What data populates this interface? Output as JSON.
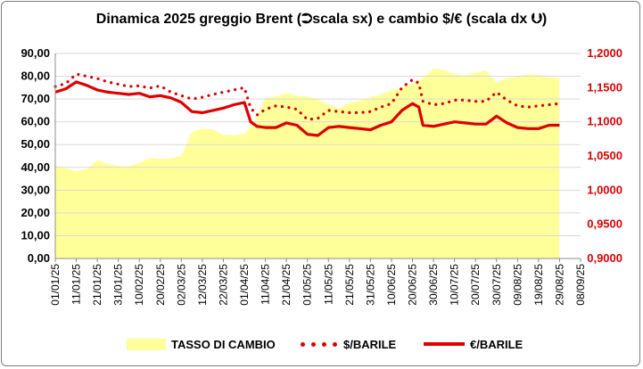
{
  "chart_data": {
    "type": "line",
    "title": "Dinamica 2025 greggio Brent (⮊scala sx) e cambio $/€ (scala dx ⮋)",
    "left_axis": {
      "range": [
        0,
        90
      ],
      "ticks": [
        "0,00",
        "10,00",
        "20,00",
        "30,00",
        "40,00",
        "50,00",
        "60,00",
        "70,00",
        "80,00",
        "90,00"
      ]
    },
    "right_axis": {
      "range": [
        0.9,
        1.2
      ],
      "ticks": [
        "0,9000",
        "0,9500",
        "1,0000",
        "1,0500",
        "1,1000",
        "1,1500",
        "1,2000"
      ]
    },
    "x_ticks": [
      "01/01/25",
      "11/01/25",
      "21/01/25",
      "31/01/25",
      "10/02/25",
      "20/02/25",
      "02/03/25",
      "12/03/25",
      "22/03/25",
      "01/04/25",
      "11/04/25",
      "21/04/25",
      "01/05/25",
      "11/05/25",
      "21/05/25",
      "31/05/25",
      "10/06/25",
      "20/06/25",
      "30/06/25",
      "10/07/25",
      "20/07/25",
      "30/07/25",
      "09/08/25",
      "19/08/25",
      "29/08/25",
      "08/09/25"
    ],
    "grid": true,
    "legend_position": "bottom",
    "series": [
      {
        "name": "TASSO DI CAMBIO",
        "kind": "area",
        "axis": "right",
        "color": "#ffff99",
        "x": [
          "01/01/25",
          "06/01/25",
          "11/01/25",
          "16/01/25",
          "21/01/25",
          "26/01/25",
          "31/01/25",
          "05/02/25",
          "10/02/25",
          "15/02/25",
          "20/02/25",
          "25/02/25",
          "02/03/25",
          "07/03/25",
          "12/03/25",
          "17/03/25",
          "22/03/25",
          "27/03/25",
          "01/04/25",
          "06/04/25",
          "11/04/25",
          "16/04/25",
          "21/04/25",
          "26/04/25",
          "01/05/25",
          "06/05/25",
          "11/05/25",
          "16/05/25",
          "21/05/25",
          "26/05/25",
          "31/05/25",
          "05/06/25",
          "10/06/25",
          "15/06/25",
          "20/06/25",
          "25/06/25",
          "30/06/25",
          "05/07/25",
          "10/07/25",
          "15/07/25",
          "20/07/25",
          "25/07/25",
          "30/07/25",
          "04/08/25",
          "09/08/25",
          "14/08/25",
          "19/08/25",
          "24/08/25",
          "29/08/25"
        ],
        "values": [
          1.036,
          1.032,
          1.028,
          1.031,
          1.044,
          1.038,
          1.036,
          1.035,
          1.04,
          1.047,
          1.046,
          1.047,
          1.05,
          1.085,
          1.09,
          1.089,
          1.081,
          1.08,
          1.082,
          1.1,
          1.135,
          1.137,
          1.142,
          1.138,
          1.137,
          1.133,
          1.125,
          1.12,
          1.128,
          1.131,
          1.136,
          1.14,
          1.146,
          1.15,
          1.156,
          1.164,
          1.178,
          1.176,
          1.17,
          1.168,
          1.172,
          1.175,
          1.158,
          1.164,
          1.166,
          1.17,
          1.169,
          1.165,
          1.164
        ]
      },
      {
        "name": "$/BARILE",
        "kind": "dotted",
        "axis": "left",
        "color": "#e00000",
        "x": [
          "01/01/25",
          "06/01/25",
          "11/01/25",
          "16/01/25",
          "21/01/25",
          "26/01/25",
          "31/01/25",
          "05/02/25",
          "10/02/25",
          "15/02/25",
          "20/02/25",
          "25/02/25",
          "02/03/25",
          "07/03/25",
          "12/03/25",
          "17/03/25",
          "22/03/25",
          "27/03/25",
          "01/04/25",
          "04/04/25",
          "07/04/25",
          "11/04/25",
          "16/04/25",
          "21/04/25",
          "26/04/25",
          "01/05/25",
          "06/05/25",
          "11/05/25",
          "16/05/25",
          "21/05/25",
          "26/05/25",
          "31/05/25",
          "05/06/25",
          "10/06/25",
          "15/06/25",
          "20/06/25",
          "23/06/25",
          "25/06/25",
          "30/06/25",
          "05/07/25",
          "10/07/25",
          "15/07/25",
          "20/07/25",
          "25/07/25",
          "30/07/25",
          "04/08/25",
          "09/08/25",
          "14/08/25",
          "19/08/25",
          "24/08/25",
          "29/08/25"
        ],
        "values": [
          75.5,
          76.8,
          81.0,
          80.0,
          79.0,
          77.5,
          76.5,
          75.5,
          75.8,
          74.8,
          75.8,
          73.0,
          71.5,
          70.0,
          70.8,
          72.0,
          73.0,
          74.0,
          75.0,
          66.0,
          63.0,
          65.5,
          67.0,
          66.5,
          65.5,
          61.0,
          61.5,
          65.0,
          64.5,
          64.0,
          64.0,
          64.5,
          66.5,
          68.0,
          75.0,
          78.5,
          77.0,
          69.0,
          67.5,
          68.0,
          69.5,
          69.5,
          69.0,
          69.0,
          73.0,
          69.5,
          67.0,
          66.5,
          67.0,
          67.5,
          68.0
        ]
      },
      {
        "name": "€/BARILE",
        "kind": "line",
        "axis": "left",
        "color": "#e00000",
        "x": [
          "01/01/25",
          "06/01/25",
          "11/01/25",
          "16/01/25",
          "21/01/25",
          "26/01/25",
          "31/01/25",
          "05/02/25",
          "10/02/25",
          "15/02/25",
          "20/02/25",
          "25/02/25",
          "02/03/25",
          "07/03/25",
          "12/03/25",
          "17/03/25",
          "22/03/25",
          "27/03/25",
          "01/04/25",
          "04/04/25",
          "07/04/25",
          "11/04/25",
          "16/04/25",
          "21/04/25",
          "26/04/25",
          "01/05/25",
          "06/05/25",
          "11/05/25",
          "16/05/25",
          "21/05/25",
          "26/05/25",
          "31/05/25",
          "05/06/25",
          "10/06/25",
          "15/06/25",
          "20/06/25",
          "23/06/25",
          "25/06/25",
          "30/06/25",
          "05/07/25",
          "10/07/25",
          "15/07/25",
          "20/07/25",
          "25/07/25",
          "30/07/25",
          "04/08/25",
          "09/08/25",
          "14/08/25",
          "19/08/25",
          "24/08/25",
          "29/08/25"
        ],
        "values": [
          73.0,
          74.5,
          77.5,
          76.0,
          74.0,
          73.0,
          72.5,
          72.0,
          72.5,
          71.0,
          71.5,
          70.5,
          68.5,
          64.5,
          64.0,
          65.0,
          66.0,
          67.5,
          68.5,
          60.0,
          58.0,
          57.5,
          57.5,
          59.5,
          58.5,
          54.5,
          54.0,
          57.5,
          58.0,
          57.5,
          57.0,
          56.5,
          58.5,
          60.0,
          65.0,
          68.0,
          66.5,
          58.5,
          58.0,
          59.0,
          60.0,
          59.5,
          59.0,
          59.0,
          62.5,
          59.5,
          57.5,
          57.0,
          57.0,
          58.5,
          58.5
        ]
      }
    ]
  }
}
